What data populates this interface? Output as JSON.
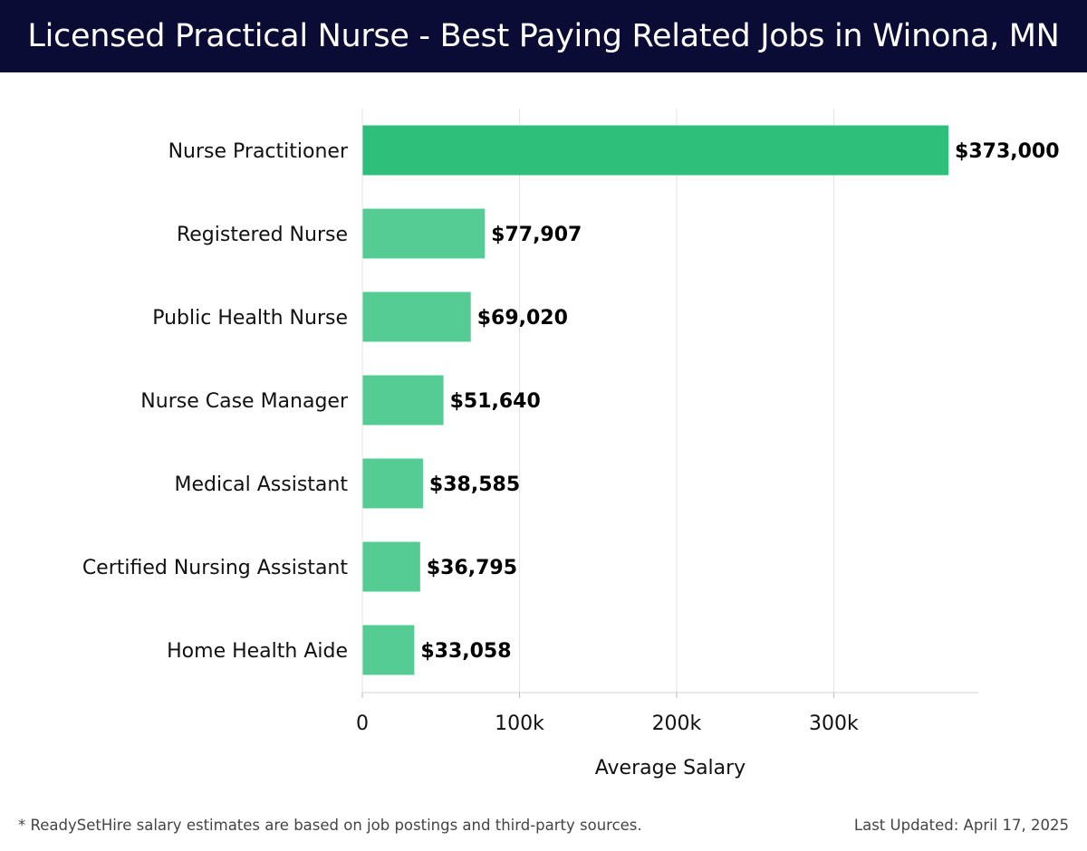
{
  "header": {
    "title": "Licensed Practical Nurse - Best Paying Related Jobs in Winona, MN"
  },
  "chart_data": {
    "type": "bar",
    "orientation": "horizontal",
    "title": "Licensed Practical Nurse - Best Paying Related Jobs in Winona, MN",
    "xlabel": "Average Salary",
    "ylabel": "",
    "categories": [
      "Nurse Practitioner",
      "Registered Nurse",
      "Public Health Nurse",
      "Nurse Case Manager",
      "Medical Assistant",
      "Certified Nursing Assistant",
      "Home Health Aide"
    ],
    "values": [
      373000,
      77907,
      69020,
      51640,
      38585,
      36795,
      33058
    ],
    "value_labels": [
      "$373,000",
      "$77,907",
      "$69,020",
      "$51,640",
      "$38,585",
      "$36,795",
      "$33,058"
    ],
    "xlim": [
      0,
      392000
    ],
    "x_ticks": [
      0,
      100000,
      200000,
      300000
    ],
    "x_tick_labels": [
      "0",
      "100k",
      "200k",
      "300k"
    ],
    "grid": true,
    "highlight_color": "#2ebf7b",
    "bar_color": "#55cc93",
    "legend": "none"
  },
  "footer": {
    "footnote": "* ReadySetHire salary estimates are based on job postings and third-party sources.",
    "updated": "Last Updated: April 17, 2025"
  }
}
